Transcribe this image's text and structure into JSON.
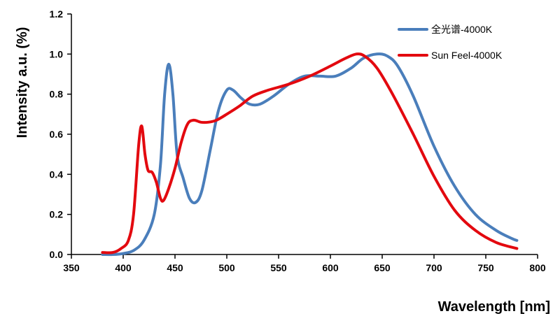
{
  "chart_data": {
    "type": "line",
    "title": "",
    "xlabel": "Wavelength  [nm]",
    "ylabel": "Intensity a.u. (%)",
    "xlim": [
      350,
      800
    ],
    "ylim": [
      0.0,
      1.2
    ],
    "x_ticks": [
      "350",
      "400",
      "450",
      "500",
      "550",
      "600",
      "650",
      "700",
      "750",
      "800"
    ],
    "y_ticks": [
      "0.0",
      "0.2",
      "0.4",
      "0.6",
      "0.8",
      "1.0",
      "1.2"
    ],
    "grid": false,
    "legend_position": "top-right",
    "series": [
      {
        "name": "全光谱-4000K",
        "color": "#4a7ebb",
        "points": [
          [
            380,
            0.0
          ],
          [
            390,
            0.0
          ],
          [
            400,
            0.005
          ],
          [
            410,
            0.02
          ],
          [
            420,
            0.07
          ],
          [
            430,
            0.2
          ],
          [
            436,
            0.45
          ],
          [
            440,
            0.8
          ],
          [
            444,
            0.95
          ],
          [
            448,
            0.8
          ],
          [
            452,
            0.5
          ],
          [
            458,
            0.38
          ],
          [
            464,
            0.28
          ],
          [
            470,
            0.26
          ],
          [
            476,
            0.32
          ],
          [
            484,
            0.52
          ],
          [
            492,
            0.72
          ],
          [
            500,
            0.82
          ],
          [
            506,
            0.82
          ],
          [
            514,
            0.78
          ],
          [
            522,
            0.75
          ],
          [
            532,
            0.75
          ],
          [
            545,
            0.79
          ],
          [
            560,
            0.85
          ],
          [
            575,
            0.89
          ],
          [
            590,
            0.89
          ],
          [
            605,
            0.89
          ],
          [
            620,
            0.93
          ],
          [
            632,
            0.98
          ],
          [
            645,
            1.0
          ],
          [
            655,
            0.99
          ],
          [
            665,
            0.94
          ],
          [
            680,
            0.79
          ],
          [
            700,
            0.54
          ],
          [
            720,
            0.34
          ],
          [
            740,
            0.2
          ],
          [
            760,
            0.12
          ],
          [
            775,
            0.08
          ],
          [
            780,
            0.07
          ]
        ]
      },
      {
        "name": "Sun Feel-4000K",
        "color": "#e3090f",
        "points": [
          [
            380,
            0.01
          ],
          [
            390,
            0.01
          ],
          [
            398,
            0.03
          ],
          [
            405,
            0.07
          ],
          [
            410,
            0.2
          ],
          [
            415,
            0.55
          ],
          [
            418,
            0.64
          ],
          [
            421,
            0.5
          ],
          [
            424,
            0.42
          ],
          [
            428,
            0.41
          ],
          [
            432,
            0.36
          ],
          [
            436,
            0.28
          ],
          [
            439,
            0.27
          ],
          [
            444,
            0.33
          ],
          [
            450,
            0.43
          ],
          [
            456,
            0.56
          ],
          [
            462,
            0.65
          ],
          [
            468,
            0.67
          ],
          [
            475,
            0.66
          ],
          [
            482,
            0.66
          ],
          [
            490,
            0.67
          ],
          [
            500,
            0.7
          ],
          [
            512,
            0.74
          ],
          [
            525,
            0.79
          ],
          [
            540,
            0.82
          ],
          [
            560,
            0.85
          ],
          [
            580,
            0.89
          ],
          [
            600,
            0.94
          ],
          [
            615,
            0.98
          ],
          [
            625,
            1.0
          ],
          [
            633,
            0.99
          ],
          [
            645,
            0.93
          ],
          [
            660,
            0.8
          ],
          [
            680,
            0.6
          ],
          [
            700,
            0.39
          ],
          [
            720,
            0.22
          ],
          [
            740,
            0.12
          ],
          [
            760,
            0.06
          ],
          [
            780,
            0.03
          ]
        ]
      }
    ]
  }
}
